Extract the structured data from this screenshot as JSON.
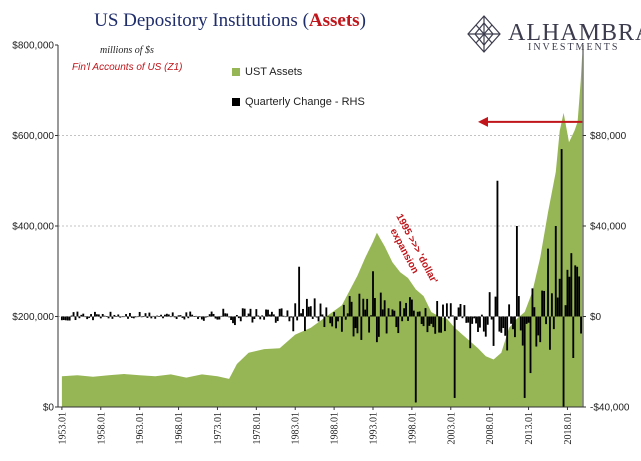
{
  "header": {
    "title_main": "US Depository Institutions (",
    "title_highlight": "Assets",
    "title_end": ")",
    "brand_name": "ALHAMBRA",
    "brand_sub": "INVESTMENTS"
  },
  "notes": {
    "units": "millions of $s",
    "source": "Fin'l Accounts of US (Z1)",
    "annotation": "1995 >>> 'dollar' expansion"
  },
  "colors": {
    "area": "#96b655",
    "bar": "#000000",
    "arrow": "#c0151a",
    "title": "#1f2d6b",
    "grid": "#b0b0b0"
  },
  "chart_data": {
    "type": "area",
    "x_unit": "year",
    "xlim": [
      1952.5,
      2020.0
    ],
    "y_left": {
      "lim": [
        0,
        800000
      ],
      "ticks": [
        "$0",
        "$200,000",
        "$400,000",
        "$600,000",
        "$800,000"
      ],
      "tick_values": [
        0,
        200000,
        400000,
        600000,
        800000
      ]
    },
    "y_right": {
      "lim": [
        -40000,
        120000
      ],
      "ticks": [
        "-$40,000",
        "$0",
        "$40,000",
        "$80,000"
      ],
      "tick_values": [
        -40000,
        0,
        40000,
        80000
      ]
    },
    "x_ticks": [
      "1953.01",
      "1958.01",
      "1963.01",
      "1968.01",
      "1973.01",
      "1978.01",
      "1983.01",
      "1988.01",
      "1993.01",
      "1998.01",
      "2003.01",
      "2008.01",
      "2013.01",
      "2018.01"
    ],
    "x_tick_values": [
      1953,
      1958,
      1963,
      1968,
      1973,
      1978,
      1983,
      1988,
      1993,
      1998,
      2003,
      2008,
      2013,
      2018
    ],
    "gridlines": "horizontal dashed at right-axis ticks",
    "legend_position": "top-center",
    "series": [
      {
        "name": "UST Assets",
        "axis": "left",
        "kind": "area",
        "points": [
          [
            1953,
            68000
          ],
          [
            1955,
            70000
          ],
          [
            1957,
            67000
          ],
          [
            1959,
            70000
          ],
          [
            1961,
            73000
          ],
          [
            1963,
            70000
          ],
          [
            1965,
            68000
          ],
          [
            1967,
            72000
          ],
          [
            1969,
            65000
          ],
          [
            1971,
            72000
          ],
          [
            1973,
            68000
          ],
          [
            1974.5,
            62000
          ],
          [
            1975.5,
            95000
          ],
          [
            1977,
            120000
          ],
          [
            1979,
            128000
          ],
          [
            1981,
            130000
          ],
          [
            1983,
            160000
          ],
          [
            1985,
            175000
          ],
          [
            1987,
            200000
          ],
          [
            1989,
            225000
          ],
          [
            1991,
            290000
          ],
          [
            1992,
            330000
          ],
          [
            1993,
            365000
          ],
          [
            1993.5,
            385000
          ],
          [
            1994.5,
            355000
          ],
          [
            1995.5,
            320000
          ],
          [
            1996.5,
            298000
          ],
          [
            1997.5,
            285000
          ],
          [
            1998.5,
            260000
          ],
          [
            1999.5,
            245000
          ],
          [
            2000.5,
            210000
          ],
          [
            2001.5,
            200000
          ],
          [
            2002.5,
            195000
          ],
          [
            2003.5,
            175000
          ],
          [
            2004.5,
            160000
          ],
          [
            2005.5,
            145000
          ],
          [
            2006.5,
            130000
          ],
          [
            2007.5,
            112000
          ],
          [
            2008.5,
            105000
          ],
          [
            2009.5,
            120000
          ],
          [
            2010.5,
            175000
          ],
          [
            2011.5,
            195000
          ],
          [
            2012.5,
            210000
          ],
          [
            2013.5,
            255000
          ],
          [
            2014.5,
            330000
          ],
          [
            2015.5,
            430000
          ],
          [
            2016.5,
            520000
          ],
          [
            2017,
            610000
          ],
          [
            2017.5,
            650000
          ],
          [
            2018.2,
            585000
          ],
          [
            2018.9,
            610000
          ],
          [
            2019.3,
            630000
          ],
          [
            2019.7,
            720000
          ],
          [
            2019.9,
            780000
          ]
        ]
      },
      {
        "name": "Quarterly Change - RHS",
        "axis": "right",
        "kind": "bar",
        "seed": 71,
        "base_amplitude": [
          [
            1953,
            2000
          ],
          [
            1968,
            1800
          ],
          [
            1973,
            3000
          ],
          [
            1976,
            5000
          ],
          [
            1978,
            3000
          ],
          [
            1982,
            3500
          ],
          [
            1983,
            9000
          ],
          [
            1988,
            6000
          ],
          [
            1991,
            11000
          ],
          [
            1993,
            14000
          ],
          [
            1995,
            9000
          ],
          [
            1998,
            8000
          ],
          [
            2003,
            10000
          ],
          [
            2006,
            7000
          ],
          [
            2008,
            12000
          ],
          [
            2010,
            15000
          ],
          [
            2013,
            15000
          ],
          [
            2016,
            18000
          ],
          [
            2019,
            22000
          ]
        ],
        "extremes": [
          [
            1983.5,
            22000
          ],
          [
            1992.9,
            20000
          ],
          [
            1993.7,
            -9000
          ],
          [
            1998.4,
            -38000
          ],
          [
            2003.5,
            -36000
          ],
          [
            2005.6,
            -14000
          ],
          [
            2008.6,
            -13000
          ],
          [
            2009.1,
            60000
          ],
          [
            2010.3,
            -15000
          ],
          [
            2011.5,
            40000
          ],
          [
            2012.4,
            -36000
          ],
          [
            2013.2,
            -25000
          ],
          [
            2015.4,
            30000
          ],
          [
            2016.4,
            40000
          ],
          [
            2017.2,
            74000
          ],
          [
            2017.6,
            -40000
          ],
          [
            2018.6,
            28000
          ]
        ]
      }
    ]
  }
}
